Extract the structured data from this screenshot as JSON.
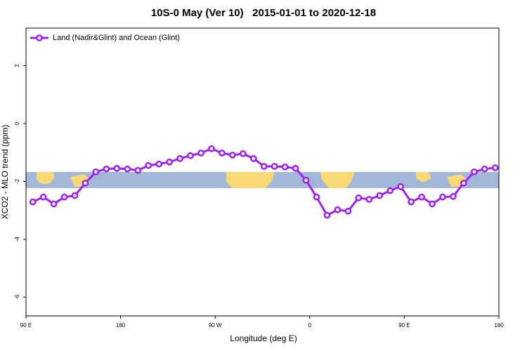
{
  "chart_data": {
    "type": "line",
    "title": "10S-0 May (Ver 10)   2015-01-01 to 2020-12-18",
    "x_label": "Longitude (deg E)",
    "y_label": "XCO2 - MLO trend (ppm)",
    "x": [
      96.5,
      106.5,
      116.5,
      126.5,
      136.5,
      146.5,
      156.5,
      166.5,
      176.5,
      186.5,
      196.5,
      206.5,
      216.5,
      226.5,
      236.5,
      246.5,
      256.5,
      266.5,
      276.5,
      286.5,
      296.5,
      306.5,
      316.5,
      326.5,
      336.5,
      346.5,
      356.5,
      366.5,
      376.5,
      386.5,
      396.5,
      406.5,
      416.5,
      426.5,
      436.5,
      446.5,
      456.5,
      466.5,
      476.5,
      486.5,
      496.5,
      506.5,
      516.5,
      526.5,
      536.5
    ],
    "series": [
      {
        "name": "Land (Nadir&Glint) and Ocean (Glint)",
        "color": "#a020f0",
        "values": [
          -2.71,
          -2.54,
          -2.78,
          -2.54,
          -2.49,
          -2.06,
          -1.67,
          -1.57,
          -1.55,
          -1.57,
          -1.62,
          -1.45,
          -1.4,
          -1.33,
          -1.21,
          -1.11,
          -1.02,
          -0.87,
          -1.02,
          -1.09,
          -1.04,
          -1.21,
          -1.48,
          -1.48,
          -1.5,
          -1.55,
          -1.96,
          -2.54,
          -3.17,
          -2.98,
          -3.03,
          -2.57,
          -2.62,
          -2.49,
          -2.32,
          -2.18,
          -2.71,
          -2.54,
          -2.78,
          -2.54,
          -2.52,
          -2.06,
          -1.67,
          -1.57,
          -1.53
        ]
      }
    ],
    "xlim": [
      90,
      540
    ],
    "xticks": [
      {
        "value": 90,
        "label": "90 E"
      },
      180,
      {
        "value": 270,
        "label": "90 W"
      },
      {
        "value": 360,
        "label": "0"
      },
      {
        "value": 450,
        "label": "90 E"
      },
      {
        "value": 540,
        "label": "180"
      }
    ],
    "ylim": [
      -6.65,
      3.3
    ],
    "yticks": [
      2,
      0,
      -2,
      -4,
      -6
    ],
    "legend": "top-left"
  }
}
